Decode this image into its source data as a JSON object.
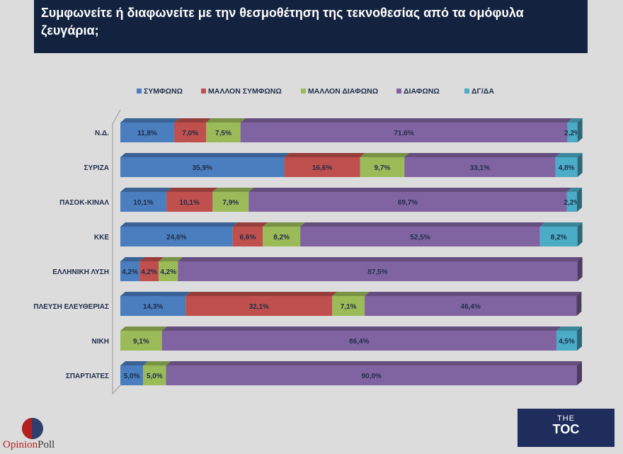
{
  "title": "Συμφωνείτε ή διαφωνείτε με την θεσμοθέτηση της τεκνοθεσίας από τα ομόφυλα ζευγάρια;",
  "logos": {
    "left": "OpinionPoll",
    "left_parts": [
      "Opinion",
      "Poll"
    ],
    "right_top": "THE",
    "right_main": "TOC"
  },
  "chart_data": {
    "type": "bar",
    "orientation": "horizontal",
    "stacked": true,
    "xlim": [
      0,
      100
    ],
    "legend_position": "top",
    "categories": [
      "Ν.Δ.",
      "ΣΥΡΙΖΑ",
      "ΠΑΣΟΚ-ΚΙΝΑΛ",
      "ΚΚΕ",
      "ΕΛΛΗΝΙΚΗ ΛΥΣΗ",
      "ΠΛΕΥΣΗ ΕΛΕΥΘΕΡΙΑΣ",
      "ΝΙΚΗ",
      "ΣΠΑΡΤΙΑΤΕΣ"
    ],
    "series": [
      {
        "name": "ΣΥΜΦΩΝΩ",
        "color": "#4a7ebf",
        "values": [
          11.8,
          35.9,
          10.1,
          24.6,
          4.2,
          14.3,
          null,
          5.0
        ]
      },
      {
        "name": "ΜΑΛΛΟΝ ΣΥΜΦΩΝΩ",
        "color": "#c0504d",
        "values": [
          7.0,
          16.6,
          10.1,
          6.6,
          4.2,
          32.1,
          null,
          null
        ]
      },
      {
        "name": "ΜΑΛΛΟΝ ΔΙΑΦΩΝΩ",
        "color": "#9bbb59",
        "values": [
          7.5,
          9.7,
          7.9,
          8.2,
          4.2,
          7.1,
          9.1,
          5.0
        ]
      },
      {
        "name": "ΔΙΑΦΩΝΩ",
        "color": "#8064a2",
        "values": [
          71.6,
          33.1,
          69.7,
          52.5,
          87.5,
          46.4,
          86.4,
          90.0
        ]
      },
      {
        "name": "ΔΓ/ΔΑ",
        "color": "#4bacc6",
        "values": [
          2.2,
          4.8,
          2.2,
          8.2,
          null,
          null,
          4.5,
          null
        ]
      }
    ]
  }
}
